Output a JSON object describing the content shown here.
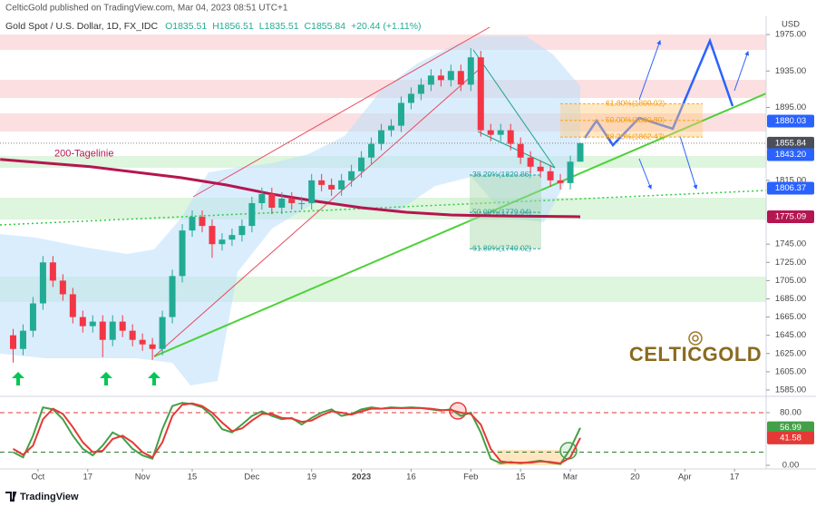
{
  "header": {
    "publisher": "CelticGold published on TradingView.com, Mar 04, 2023 08:51 UTC+1"
  },
  "footer": {
    "brand": "TradingView"
  },
  "logo": {
    "text": "CELTICGOLD"
  },
  "chart_data": [
    {
      "type": "candlestick",
      "title": "Gold Spot / U.S. Dollar, 1D, FX_IDC",
      "ohlc_labels": [
        "O1835.51",
        "H1856.51",
        "L1835.51",
        "C1855.84",
        "+20.44 (+1.11%)"
      ],
      "axis_label": "USD",
      "up_color": "#22ab94",
      "down_color": "#f23645",
      "x": [
        -5,
        -3,
        -1,
        1,
        3,
        5,
        7,
        9,
        11,
        13,
        15,
        17,
        19,
        21,
        23,
        25,
        27,
        29,
        31,
        33,
        35,
        37,
        39,
        41,
        43,
        45,
        47,
        49,
        51,
        53,
        55,
        57,
        59,
        61,
        63,
        65,
        67,
        69,
        71,
        73,
        75,
        77,
        79,
        81,
        83,
        85,
        87,
        89,
        91,
        93,
        95,
        97,
        99,
        101,
        103,
        105,
        107,
        109
      ],
      "open": [
        1645,
        1630,
        1650,
        1680,
        1725,
        1705,
        1690,
        1665,
        1655,
        1660,
        1640,
        1660,
        1650,
        1640,
        1635,
        1630,
        1665,
        1710,
        1760,
        1775,
        1765,
        1745,
        1750,
        1755,
        1765,
        1790,
        1800,
        1785,
        1795,
        1790,
        1790,
        1815,
        1810,
        1805,
        1815,
        1825,
        1840,
        1855,
        1870,
        1875,
        1900,
        1910,
        1920,
        1930,
        1925,
        1935,
        1920,
        1950,
        1870,
        1865,
        1870,
        1855,
        1840,
        1830,
        1825,
        1815,
        1812,
        1835.51
      ],
      "high": [
        1652,
        1657,
        1687,
        1732,
        1732,
        1712,
        1697,
        1672,
        1667,
        1667,
        1667,
        1667,
        1657,
        1647,
        1642,
        1672,
        1717,
        1767,
        1782,
        1782,
        1772,
        1757,
        1762,
        1772,
        1797,
        1807,
        1807,
        1802,
        1802,
        1797,
        1822,
        1822,
        1817,
        1822,
        1832,
        1847,
        1862,
        1877,
        1882,
        1907,
        1917,
        1927,
        1937,
        1937,
        1942,
        1942,
        1960,
        1957,
        1877,
        1877,
        1877,
        1862,
        1847,
        1837,
        1832,
        1822,
        1842,
        1856.51
      ],
      "low": [
        1615,
        1623,
        1643,
        1673,
        1698,
        1683,
        1658,
        1648,
        1648,
        1621,
        1633,
        1643,
        1633,
        1628,
        1618,
        1623,
        1658,
        1703,
        1753,
        1758,
        1730,
        1738,
        1743,
        1748,
        1758,
        1783,
        1778,
        1778,
        1783,
        1783,
        1783,
        1803,
        1798,
        1798,
        1808,
        1818,
        1833,
        1848,
        1863,
        1868,
        1893,
        1903,
        1913,
        1918,
        1918,
        1913,
        1913,
        1863,
        1858,
        1858,
        1848,
        1833,
        1823,
        1818,
        1808,
        1805,
        1805,
        1835.51
      ],
      "close": [
        1630,
        1650,
        1680,
        1725,
        1705,
        1690,
        1665,
        1655,
        1660,
        1640,
        1660,
        1650,
        1640,
        1635,
        1630,
        1665,
        1710,
        1760,
        1775,
        1765,
        1745,
        1750,
        1755,
        1765,
        1790,
        1800,
        1785,
        1795,
        1790,
        1790,
        1815,
        1810,
        1805,
        1815,
        1825,
        1840,
        1855,
        1870,
        1875,
        1900,
        1910,
        1920,
        1930,
        1925,
        1935,
        1920,
        1950,
        1870,
        1865,
        1870,
        1855,
        1840,
        1830,
        1825,
        1815,
        1812,
        1835.51,
        1855.84
      ],
      "series": [
        {
          "name": "200-Tagelinie",
          "color": "#b5164f",
          "x": [
            -7.6,
            10.5,
            28.7,
            37.8,
            46.9,
            56,
            65,
            74,
            83,
            92,
            109
          ],
          "values": [
            1838,
            1830,
            1818,
            1810,
            1800,
            1792,
            1785,
            1780,
            1777,
            1776,
            1775.09
          ]
        }
      ],
      "xlim": [
        -7.64,
        146.36
      ],
      "ylim": [
        1578,
        1993
      ],
      "yticks": [
        {
          "value": 1975,
          "label": "1975.00"
        },
        {
          "value": 1935,
          "label": "1935.00"
        },
        {
          "value": 1895,
          "label": "1895.00"
        },
        {
          "value": 1815,
          "label": "1815.00"
        },
        {
          "value": 1745,
          "label": "1745.00"
        },
        {
          "value": 1725,
          "label": "1725.00"
        },
        {
          "value": 1705,
          "label": "1705.00"
        },
        {
          "value": 1685,
          "label": "1685.00"
        },
        {
          "value": 1665,
          "label": "1665.00"
        },
        {
          "value": 1645,
          "label": "1645.00"
        },
        {
          "value": 1625,
          "label": "1625.00"
        },
        {
          "value": 1605,
          "label": "1605.00"
        },
        {
          "value": 1585,
          "label": "1585.00"
        }
      ],
      "grid": false,
      "price_tags": [
        {
          "value": 1880.03,
          "label": "1880.03",
          "color": "#2962ff"
        },
        {
          "value": 1855.84,
          "label": "1855.84",
          "color": "#4a4e59"
        },
        {
          "value": 1843.2,
          "label": "1843.20",
          "color": "#2962ff"
        },
        {
          "value": 1806.37,
          "label": "1806.37",
          "color": "#2962ff"
        },
        {
          "value": 1775.09,
          "label": "1775.09",
          "color": "#b5164f"
        }
      ],
      "fib_right": [
        {
          "value": 1899.02,
          "label": "61.80%(1899.02)"
        },
        {
          "value": 1880.8,
          "label": "50.00%(1880.80)"
        },
        {
          "value": 1862.47,
          "label": "38.20%(1862.47)"
        }
      ],
      "fib_left": [
        {
          "value": 1820.86,
          "label": "38.20%(1820.86)"
        },
        {
          "value": 1779.94,
          "label": "50.00%(1779.94)"
        },
        {
          "value": 1740.02,
          "label": "61.80%(1740.02)"
        }
      ]
    },
    {
      "type": "line",
      "x": [
        -5,
        -3,
        -1,
        1,
        3,
        5,
        7,
        9,
        11,
        13,
        15,
        17,
        19,
        21,
        23,
        25,
        27,
        29,
        31,
        33,
        35,
        37,
        39,
        41,
        43,
        45,
        47,
        49,
        51,
        53,
        55,
        57,
        59,
        61,
        63,
        65,
        67,
        69,
        71,
        73,
        75,
        77,
        79,
        81,
        83,
        85,
        87,
        89,
        91,
        93,
        95,
        97,
        99,
        101,
        103,
        105,
        107,
        109
      ],
      "series": [
        {
          "color": "#43a047",
          "values": [
            20,
            12,
            45,
            88,
            85,
            70,
            45,
            25,
            15,
            30,
            50,
            42,
            25,
            15,
            10,
            55,
            90,
            95,
            93,
            88,
            75,
            55,
            50,
            62,
            75,
            82,
            75,
            70,
            72,
            62,
            72,
            80,
            85,
            75,
            78,
            85,
            88,
            86,
            88,
            87,
            88,
            87,
            85,
            83,
            85,
            75,
            80,
            50,
            10,
            3,
            5,
            3,
            5,
            7,
            4,
            2,
            25,
            56.99
          ],
          "tag": "56.99"
        },
        {
          "color": "#e53935",
          "values": [
            25,
            16,
            30,
            70,
            86,
            78,
            58,
            35,
            20,
            22,
            40,
            45,
            35,
            20,
            12,
            35,
            75,
            92,
            94,
            90,
            80,
            65,
            52,
            56,
            68,
            78,
            78,
            72,
            71,
            66,
            68,
            76,
            82,
            80,
            77,
            82,
            86,
            86,
            87,
            87,
            87,
            87,
            86,
            84,
            84,
            80,
            78,
            62,
            25,
            6,
            4,
            4,
            4,
            6,
            5,
            3,
            12,
            41.58
          ],
          "tag": "41.58"
        }
      ],
      "levels": [
        {
          "value": 80,
          "color": "#e53935"
        },
        {
          "value": 20,
          "color": "#2e7d32"
        }
      ],
      "xlim": [
        -7.64,
        146.36
      ],
      "xticks": [
        {
          "value": 0,
          "label": "Oct"
        },
        {
          "value": 10,
          "label": "17"
        },
        {
          "value": 21,
          "label": "Nov"
        },
        {
          "value": 31,
          "label": "15"
        },
        {
          "value": 43,
          "label": "Dec"
        },
        {
          "value": 55,
          "label": "19"
        },
        {
          "value": 65,
          "label": "2023"
        },
        {
          "value": 75,
          "label": "16"
        },
        {
          "value": 87,
          "label": "Feb"
        },
        {
          "value": 97,
          "label": "15"
        },
        {
          "value": 107,
          "label": "Mar"
        },
        {
          "value": 120,
          "label": "20"
        },
        {
          "value": 130,
          "label": "Apr"
        },
        {
          "value": 140,
          "label": "17"
        }
      ],
      "ylim": [
        -5.5,
        103.4
      ],
      "yticks": [
        {
          "value": 80,
          "label": "80.00"
        },
        {
          "value": 0,
          "label": "0.00"
        }
      ]
    }
  ]
}
